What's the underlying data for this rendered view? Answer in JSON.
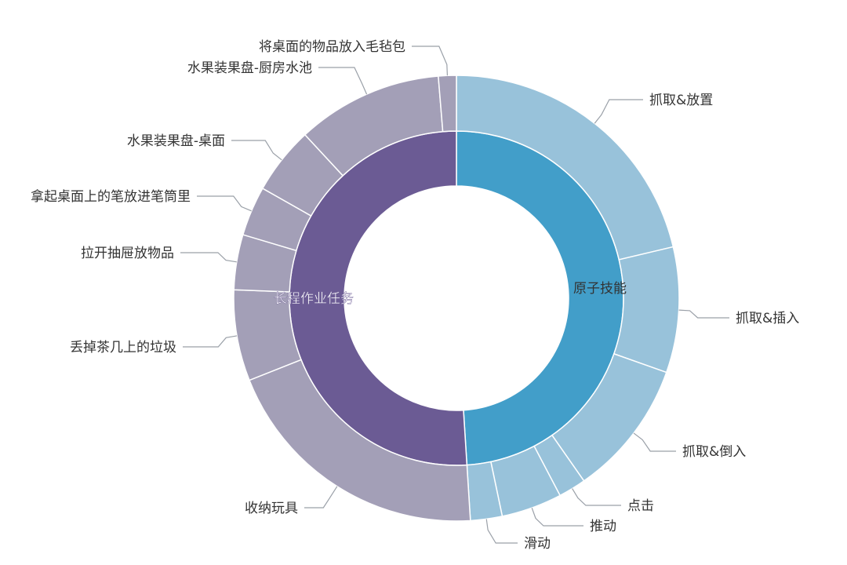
{
  "chart_data": {
    "type": "sunburst",
    "title": "",
    "unit": "percent",
    "colors": {
      "原子技能": {
        "inner": "#429ec9",
        "outer": "#98c2da"
      },
      "长程作业任务": {
        "inner": "#6b5b94",
        "outer": "#a39fb7"
      }
    },
    "groups": [
      {
        "name": "原子技能",
        "children": [
          {
            "name": "抓取&放置",
            "value": 21.3
          },
          {
            "name": "抓取&插入",
            "value": 9.1
          },
          {
            "name": "抓取&倒入",
            "value": 9.9
          },
          {
            "name": "点击",
            "value": 2.0
          },
          {
            "name": "推动",
            "value": 4.4
          },
          {
            "name": "滑动",
            "value": 2.3
          }
        ]
      },
      {
        "name": "长程作业任务",
        "children": [
          {
            "name": "收纳玩具",
            "value": 20.0
          },
          {
            "name": "丢掉茶几上的垃圾",
            "value": 6.6
          },
          {
            "name": "拉开抽屉放物品",
            "value": 4.0
          },
          {
            "name": "拿起桌面上的笔放进笔筒里",
            "value": 3.6
          },
          {
            "name": "水果装果盘-桌面",
            "value": 4.9
          },
          {
            "name": "水果装果盘-厨房水池",
            "value": 10.6
          },
          {
            "name": "将桌面的物品放入毛毡包",
            "value": 1.3
          }
        ]
      }
    ]
  }
}
